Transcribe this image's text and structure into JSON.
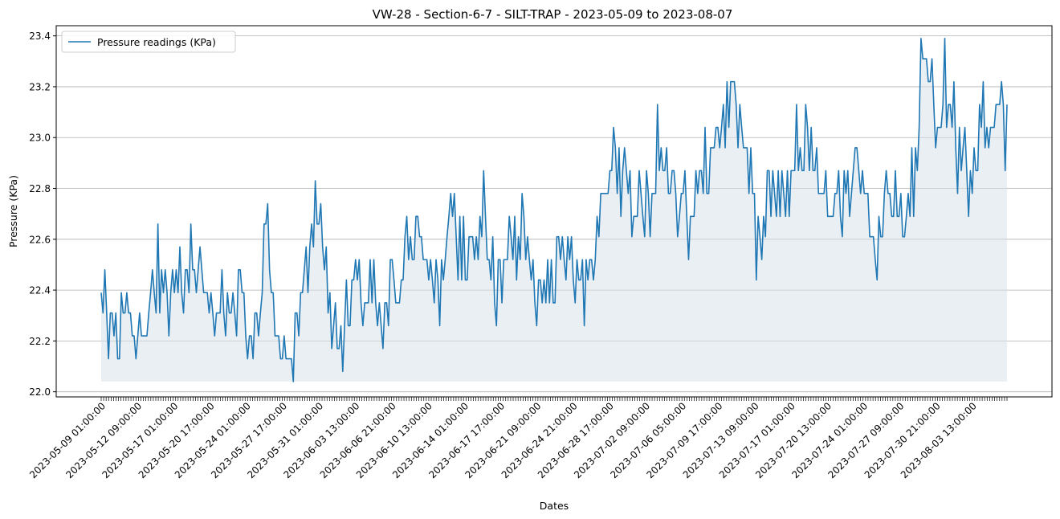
{
  "chart_data": {
    "type": "line",
    "title": "VW-28 - Section-6-7 - SILT-TRAP - 2023-05-09 to 2023-08-07",
    "xlabel": "Dates",
    "ylabel": "Pressure (KPa)",
    "ylim": [
      21.98,
      23.44
    ],
    "y_ticks": [
      22.0,
      22.2,
      22.4,
      22.6,
      22.8,
      23.0,
      23.2,
      23.4
    ],
    "x_range": [
      "2023-05-09 01:00:00",
      "2023-08-07 17:00:00"
    ],
    "x_tick_labels": [
      "2023-05-09 01:00:00",
      "2023-05-12 09:00:00",
      "2023-05-17 01:00:00",
      "2023-05-20 17:00:00",
      "2023-05-24 01:00:00",
      "2023-05-27 17:00:00",
      "2023-05-31 01:00:00",
      "2023-06-03 13:00:00",
      "2023-06-06 21:00:00",
      "2023-06-10 13:00:00",
      "2023-06-14 01:00:00",
      "2023-06-17 17:00:00",
      "2023-06-21 09:00:00",
      "2023-06-24 21:00:00",
      "2023-06-28 17:00:00",
      "2023-07-02 09:00:00",
      "2023-07-06 05:00:00",
      "2023-07-09 17:00:00",
      "2023-07-13 09:00:00",
      "2023-07-17 01:00:00",
      "2023-07-20 13:00:00",
      "2023-07-24 01:00:00",
      "2023-07-27 09:00:00",
      "2023-07-30 21:00:00",
      "2023-08-03 13:00:00"
    ],
    "grid": "y",
    "fill_baseline": 22.04,
    "legend_position": "upper-left",
    "series": [
      {
        "name": "Pressure readings (KPa)",
        "color": "#1f77b4",
        "fill_color": "#d5e0e8",
        "values": [
          22.39,
          22.31,
          22.48,
          22.31,
          22.13,
          22.31,
          22.31,
          22.22,
          22.31,
          22.13,
          22.13,
          22.39,
          22.31,
          22.31,
          22.39,
          22.31,
          22.31,
          22.22,
          22.22,
          22.13,
          22.22,
          22.31,
          22.22,
          22.22,
          22.22,
          22.22,
          22.31,
          22.39,
          22.48,
          22.39,
          22.31,
          22.66,
          22.31,
          22.48,
          22.39,
          22.48,
          22.39,
          22.22,
          22.39,
          22.48,
          22.39,
          22.48,
          22.39,
          22.57,
          22.39,
          22.31,
          22.48,
          22.48,
          22.39,
          22.66,
          22.48,
          22.48,
          22.39,
          22.48,
          22.57,
          22.48,
          22.39,
          22.39,
          22.39,
          22.31,
          22.39,
          22.31,
          22.22,
          22.31,
          22.31,
          22.31,
          22.48,
          22.31,
          22.22,
          22.39,
          22.31,
          22.31,
          22.39,
          22.31,
          22.22,
          22.48,
          22.48,
          22.39,
          22.39,
          22.22,
          22.13,
          22.22,
          22.22,
          22.13,
          22.31,
          22.31,
          22.22,
          22.31,
          22.39,
          22.66,
          22.66,
          22.74,
          22.48,
          22.39,
          22.39,
          22.22,
          22.22,
          22.22,
          22.13,
          22.13,
          22.22,
          22.13,
          22.13,
          22.13,
          22.13,
          22.04,
          22.31,
          22.31,
          22.22,
          22.39,
          22.39,
          22.48,
          22.57,
          22.39,
          22.57,
          22.66,
          22.57,
          22.83,
          22.66,
          22.66,
          22.74,
          22.57,
          22.48,
          22.57,
          22.31,
          22.39,
          22.17,
          22.26,
          22.35,
          22.17,
          22.17,
          22.26,
          22.08,
          22.26,
          22.44,
          22.26,
          22.26,
          22.44,
          22.44,
          22.52,
          22.44,
          22.52,
          22.35,
          22.26,
          22.35,
          22.35,
          22.35,
          22.52,
          22.35,
          22.52,
          22.35,
          22.26,
          22.35,
          22.26,
          22.17,
          22.35,
          22.35,
          22.26,
          22.52,
          22.52,
          22.44,
          22.35,
          22.35,
          22.35,
          22.44,
          22.44,
          22.61,
          22.69,
          22.52,
          22.61,
          22.52,
          22.52,
          22.69,
          22.69,
          22.61,
          22.61,
          22.52,
          22.52,
          22.52,
          22.44,
          22.52,
          22.44,
          22.35,
          22.52,
          22.44,
          22.26,
          22.52,
          22.44,
          22.52,
          22.61,
          22.69,
          22.78,
          22.69,
          22.78,
          22.61,
          22.44,
          22.69,
          22.44,
          22.69,
          22.44,
          22.44,
          22.61,
          22.61,
          22.61,
          22.52,
          22.61,
          22.52,
          22.69,
          22.61,
          22.87,
          22.69,
          22.52,
          22.52,
          22.44,
          22.61,
          22.35,
          22.26,
          22.52,
          22.52,
          22.35,
          22.52,
          22.52,
          22.52,
          22.69,
          22.61,
          22.52,
          22.69,
          22.44,
          22.61,
          22.52,
          22.78,
          22.69,
          22.52,
          22.61,
          22.52,
          22.44,
          22.52,
          22.35,
          22.26,
          22.44,
          22.44,
          22.35,
          22.44,
          22.35,
          22.52,
          22.35,
          22.52,
          22.35,
          22.35,
          22.61,
          22.61,
          22.52,
          22.61,
          22.52,
          22.44,
          22.61,
          22.52,
          22.61,
          22.44,
          22.35,
          22.52,
          22.44,
          22.44,
          22.52,
          22.26,
          22.52,
          22.44,
          22.52,
          22.52,
          22.44,
          22.52,
          22.69,
          22.61,
          22.78,
          22.78,
          22.78,
          22.78,
          22.78,
          22.87,
          22.87,
          23.04,
          22.96,
          22.78,
          22.96,
          22.69,
          22.87,
          22.96,
          22.87,
          22.78,
          22.87,
          22.61,
          22.69,
          22.69,
          22.69,
          22.87,
          22.78,
          22.69,
          22.61,
          22.87,
          22.78,
          22.61,
          22.78,
          22.78,
          22.78,
          23.13,
          22.87,
          22.96,
          22.87,
          22.87,
          22.96,
          22.78,
          22.78,
          22.87,
          22.87,
          22.78,
          22.61,
          22.69,
          22.78,
          22.78,
          22.87,
          22.69,
          22.52,
          22.69,
          22.69,
          22.69,
          22.87,
          22.78,
          22.87,
          22.87,
          22.78,
          23.04,
          22.78,
          22.78,
          22.96,
          22.96,
          22.96,
          23.04,
          23.04,
          22.96,
          23.04,
          23.13,
          22.96,
          23.22,
          23.04,
          23.22,
          23.22,
          23.22,
          23.13,
          22.96,
          23.13,
          23.04,
          22.96,
          22.96,
          22.96,
          22.78,
          22.96,
          22.78,
          22.78,
          22.44,
          22.69,
          22.61,
          22.52,
          22.69,
          22.61,
          22.87,
          22.87,
          22.69,
          22.87,
          22.78,
          22.69,
          22.87,
          22.69,
          22.87,
          22.78,
          22.69,
          22.87,
          22.69,
          22.87,
          22.87,
          22.87,
          23.13,
          22.87,
          22.96,
          22.87,
          22.87,
          23.13,
          23.04,
          22.87,
          23.04,
          22.87,
          22.87,
          22.96,
          22.78,
          22.78,
          22.78,
          22.78,
          22.87,
          22.69,
          22.69,
          22.69,
          22.69,
          22.78,
          22.78,
          22.87,
          22.69,
          22.61,
          22.87,
          22.78,
          22.87,
          22.69,
          22.78,
          22.87,
          22.96,
          22.96,
          22.87,
          22.78,
          22.87,
          22.78,
          22.78,
          22.78,
          22.61,
          22.61,
          22.61,
          22.52,
          22.44,
          22.69,
          22.61,
          22.61,
          22.78,
          22.87,
          22.78,
          22.78,
          22.69,
          22.69,
          22.87,
          22.69,
          22.69,
          22.78,
          22.61,
          22.61,
          22.69,
          22.78,
          22.69,
          22.96,
          22.69,
          22.96,
          22.87,
          23.04,
          23.39,
          23.31,
          23.31,
          23.31,
          23.22,
          23.22,
          23.31,
          23.13,
          22.96,
          23.04,
          23.04,
          23.04,
          23.13,
          23.39,
          23.04,
          23.13,
          23.13,
          23.04,
          23.22,
          22.96,
          22.78,
          23.04,
          22.87,
          22.96,
          23.04,
          22.87,
          22.69,
          22.87,
          22.78,
          22.96,
          22.87,
          22.87,
          23.13,
          23.04,
          23.22,
          22.96,
          23.04,
          22.96,
          23.04,
          23.04,
          23.04,
          23.13,
          23.13,
          23.13,
          23.22,
          23.13,
          22.87,
          23.13
        ]
      }
    ]
  }
}
